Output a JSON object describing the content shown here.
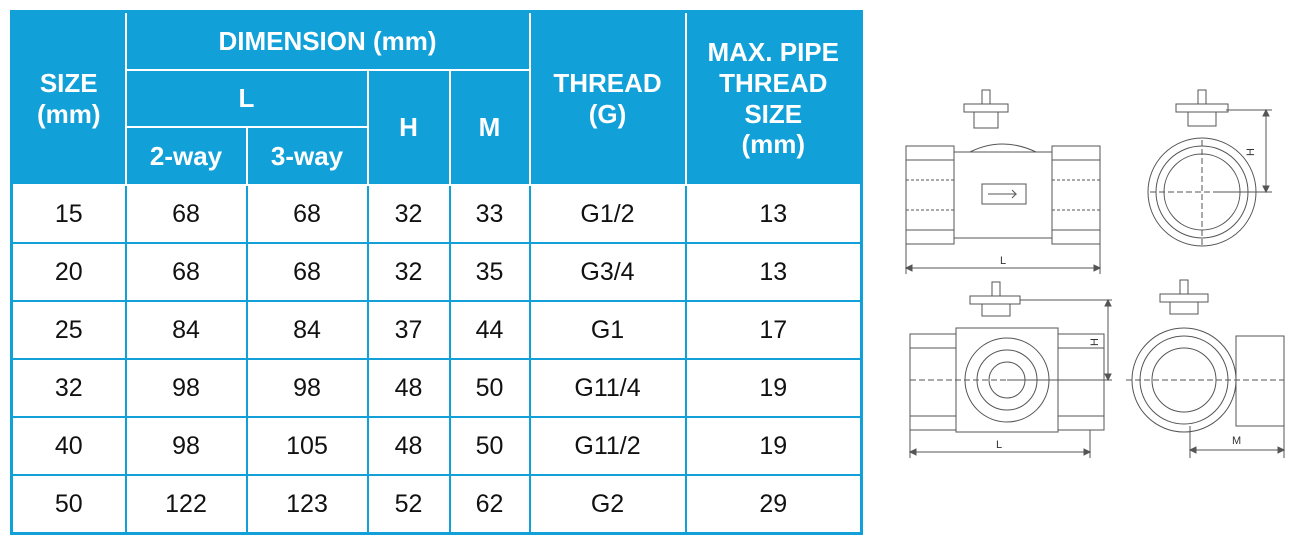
{
  "table": {
    "headers": {
      "size": "SIZE\n(mm)",
      "dimension": "DIMENSION (mm)",
      "l": "L",
      "two_way": "2-way",
      "three_way": "3-way",
      "h": "H",
      "m": "M",
      "thread": "THREAD\n(G)",
      "max_pipe": "MAX. PIPE\nTHREAD\nSIZE\n(mm)"
    },
    "rows": [
      {
        "size": "15",
        "l2": "68",
        "l3": "68",
        "h": "32",
        "m": "33",
        "thread": "G1/2",
        "max": "13"
      },
      {
        "size": "20",
        "l2": "68",
        "l3": "68",
        "h": "32",
        "m": "35",
        "thread": "G3/4",
        "max": "13"
      },
      {
        "size": "25",
        "l2": "84",
        "l3": "84",
        "h": "37",
        "m": "44",
        "thread": "G1",
        "max": "17"
      },
      {
        "size": "32",
        "l2": "98",
        "l3": "98",
        "h": "48",
        "m": "50",
        "thread": "G11/4",
        "max": "19"
      },
      {
        "size": "40",
        "l2": "98",
        "l3": "105",
        "h": "48",
        "m": "50",
        "thread": "G11/2",
        "max": "19"
      },
      {
        "size": "50",
        "l2": "122",
        "l3": "123",
        "h": "52",
        "m": "62",
        "thread": "G2",
        "max": "29"
      }
    ]
  },
  "drawing": {
    "label_l_top": "L",
    "label_h_top": "H",
    "label_h_bottom": "H",
    "label_l_bottom": "L",
    "label_m": "M"
  },
  "colors": {
    "header_bg": "#12a0d9",
    "header_text": "#ffffff",
    "border": "#12a0d9"
  }
}
